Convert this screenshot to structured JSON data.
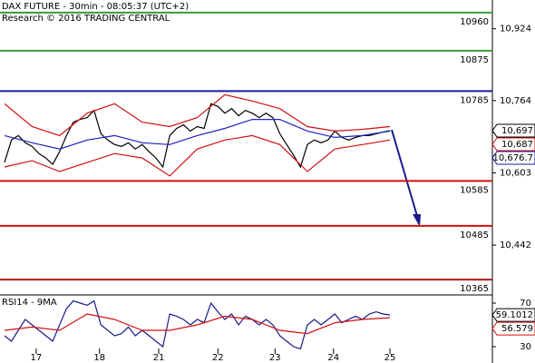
{
  "chart_data": [
    {
      "type": "line",
      "title": "DAX FUTURE - 30min - 08:05:37 (UTC+2)",
      "subtitle": "Research © 2016 TRADING CENTRAL",
      "ylim": [
        10331,
        10988
      ],
      "yticks": [
        {
          "value": 10924,
          "label": "10,924"
        },
        {
          "value": 10764,
          "label": "10,764"
        },
        {
          "value": 10603,
          "label": "10,603"
        },
        {
          "value": 10442,
          "label": "10,442"
        }
      ],
      "levels": [
        {
          "value": 10960,
          "color": "#3a9a3a"
        },
        {
          "value": 10875,
          "color": "#3a9a3a"
        },
        {
          "value": 10785,
          "color": "#1a1aa6"
        },
        {
          "value": 10585,
          "color": "#d01010"
        },
        {
          "value": 10485,
          "color": "#d01010"
        },
        {
          "value": 10365,
          "color": "#b01818"
        }
      ],
      "series": [
        {
          "color": "#000000",
          "values": [
            10626,
            10676,
            10686,
            10670,
            10662,
            10646,
            10636,
            10622,
            10650,
            10686,
            10716,
            10722,
            10726,
            10742,
            10690,
            10676,
            10666,
            10662,
            10670,
            10656,
            10666,
            10650,
            10636,
            10616,
            10686,
            10702,
            10710,
            10696,
            10706,
            10702,
            10757,
            10751,
            10736,
            10746,
            10730,
            10742,
            10736,
            10726,
            10736,
            10726,
            10690,
            10666,
            10642,
            10616,
            10666,
            10676,
            10670,
            10676,
            10696,
            10682,
            10676,
            10682,
            10686,
            10686,
            10690,
            10694,
            10697
          ]
        },
        {
          "color": "#2020c0",
          "x": [
            0,
            4,
            8,
            12,
            16,
            20,
            24,
            28,
            32,
            36,
            40,
            44,
            48,
            52,
            56
          ],
          "values": [
            10686,
            10670,
            10656,
            10676,
            10686,
            10670,
            10666,
            10686,
            10702,
            10722,
            10722,
            10696,
            10682,
            10686,
            10696
          ]
        },
        {
          "color": "#d01010",
          "x": [
            0,
            4,
            8,
            12,
            16,
            20,
            24,
            28,
            32,
            36,
            40,
            44,
            48,
            52,
            56
          ],
          "values": [
            10757,
            10706,
            10686,
            10736,
            10757,
            10716,
            10706,
            10726,
            10777,
            10763,
            10746,
            10706,
            10696,
            10700,
            10706
          ]
        },
        {
          "color": "#d01010",
          "x": [
            0,
            4,
            8,
            12,
            16,
            20,
            24,
            28,
            32,
            36,
            40,
            44,
            48,
            52,
            56
          ],
          "values": [
            10616,
            10630,
            10606,
            10626,
            10646,
            10636,
            10596,
            10656,
            10676,
            10686,
            10666,
            10606,
            10656,
            10666,
            10676
          ]
        }
      ],
      "last_tags": [
        {
          "value": 10697,
          "label": "10,697",
          "color": "#000000"
        },
        {
          "value": 10687,
          "label": "10,687",
          "color": "#d01010"
        },
        {
          "value": 10676.7,
          "label": "10,676.7",
          "color": "#1a1aa6"
        }
      ]
    },
    {
      "type": "line",
      "title": "RSI14 - 9MA",
      "ylim": [
        15,
        77.5
      ],
      "yticks": [
        70,
        30
      ],
      "xticks": [
        {
          "value": 4.6,
          "label": "17"
        },
        {
          "value": 13.8,
          "label": "18"
        },
        {
          "value": 22.4,
          "label": "21"
        },
        {
          "value": 31,
          "label": "22"
        },
        {
          "value": 39.3,
          "label": "23"
        },
        {
          "value": 47.8,
          "label": "24"
        },
        {
          "value": 56,
          "label": "25"
        }
      ],
      "series": [
        {
          "color": "#1a1a8a",
          "values": [
            40,
            35,
            45,
            55,
            50,
            45,
            40,
            35,
            50,
            65,
            72,
            70,
            68,
            72,
            50,
            45,
            40,
            42,
            48,
            40,
            45,
            40,
            35,
            30,
            60,
            58,
            55,
            50,
            55,
            52,
            70,
            62,
            55,
            60,
            50,
            58,
            55,
            50,
            55,
            50,
            40,
            35,
            30,
            28,
            50,
            55,
            50,
            55,
            60,
            52,
            55,
            58,
            55,
            60,
            62,
            60,
            59.1
          ]
        },
        {
          "color": "#d01010",
          "x": [
            0,
            4,
            8,
            12,
            16,
            20,
            24,
            28,
            32,
            36,
            40,
            44,
            48,
            52,
            56
          ],
          "values": [
            45,
            48,
            45,
            60,
            55,
            45,
            45,
            50,
            58,
            55,
            45,
            42,
            52,
            55,
            56.6
          ]
        }
      ],
      "last_tags": [
        {
          "value": 59.1012,
          "label": "59.1012",
          "color": "#000000"
        },
        {
          "value": 56.579,
          "label": "56.579",
          "color": "#d01010"
        }
      ]
    }
  ]
}
